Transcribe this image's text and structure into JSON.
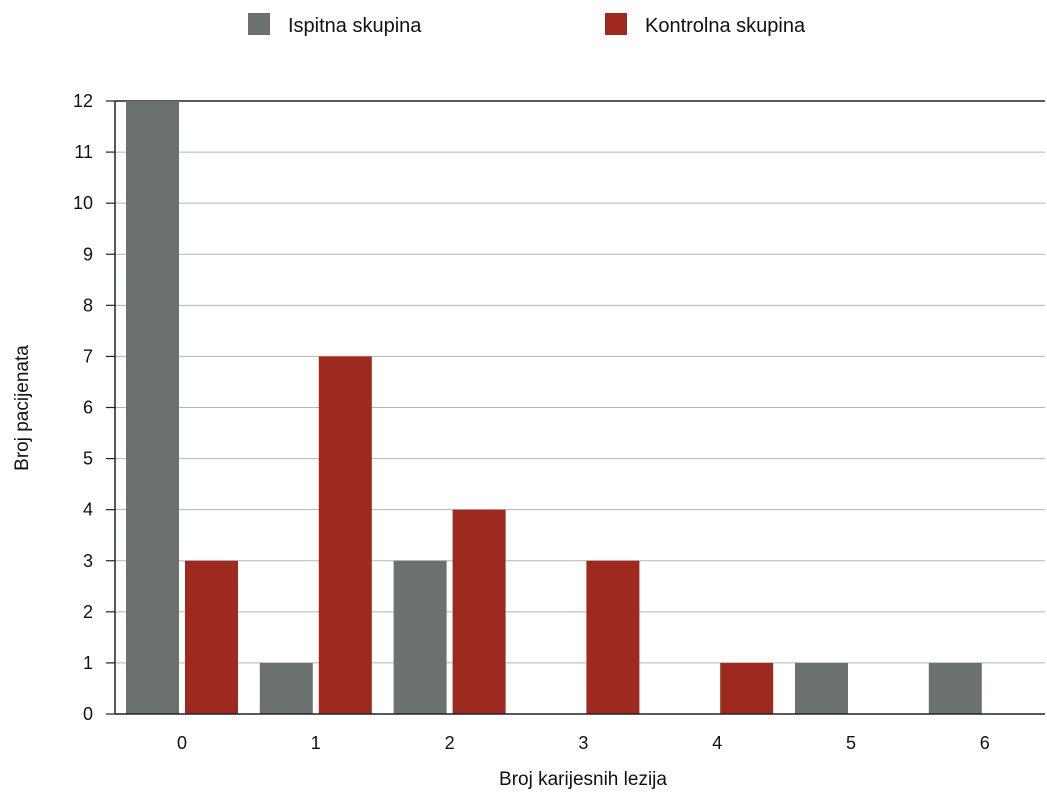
{
  "chart_data": {
    "type": "bar",
    "categories": [
      "0",
      "1",
      "2",
      "3",
      "4",
      "5",
      "6"
    ],
    "series": [
      {
        "name": "Ispitna skupina",
        "color": "#6b716e",
        "values": [
          12,
          1,
          3,
          0,
          0,
          1,
          1
        ]
      },
      {
        "name": "Kontrolna skupina",
        "color": "#9e2a1f",
        "values": [
          3,
          7,
          4,
          3,
          1,
          0,
          0
        ]
      }
    ],
    "xlabel": "Broj karijesnih lezija",
    "ylabel": "Broj pacijenata",
    "ylim": [
      0,
      12
    ],
    "yticks": [
      "0",
      "1",
      "2",
      "3",
      "4",
      "5",
      "6",
      "7",
      "8",
      "9",
      "10",
      "11",
      "12"
    ],
    "grid": true,
    "legend": "top-center"
  }
}
